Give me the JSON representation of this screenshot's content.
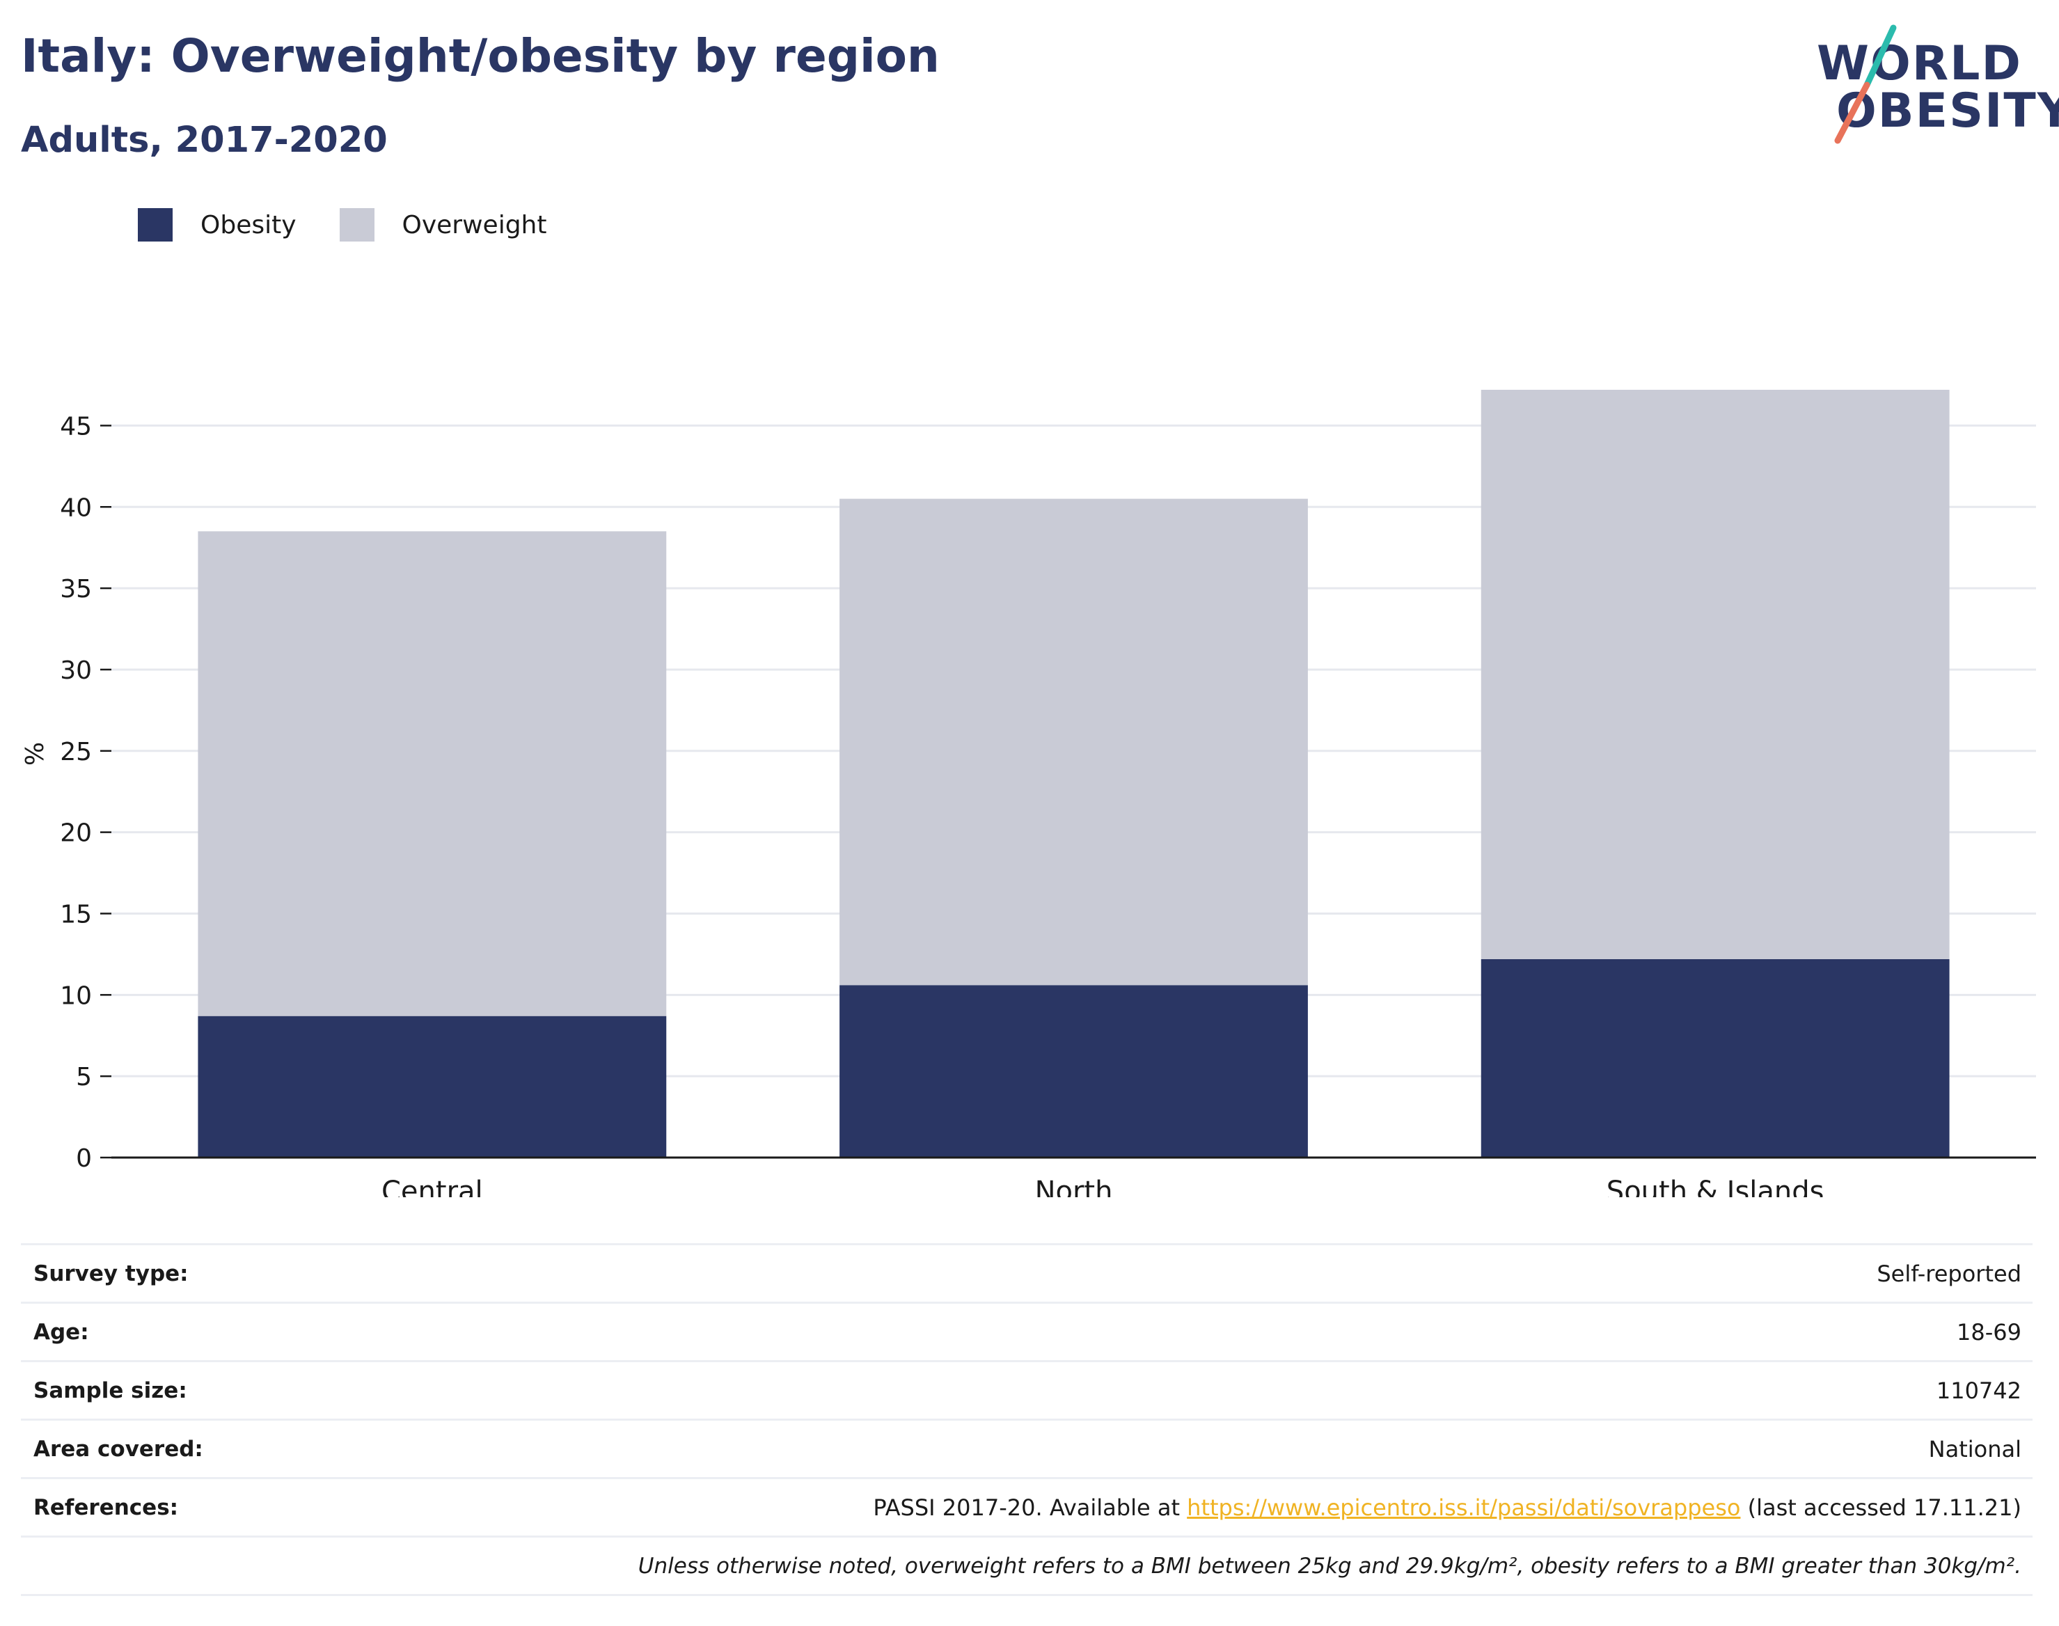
{
  "title": "Italy: Overweight/obesity by region",
  "subtitle": "Adults, 2017-2020",
  "logo": {
    "line1": "WORLD",
    "line2": "OBESITY",
    "accent_colors": [
      "#2bbbad",
      "#e8735a"
    ]
  },
  "colors": {
    "obesity": "#2a3664",
    "overweight": "#c9cbd6",
    "title": "#2a3664",
    "grid": "#e6e8ee",
    "link": "#f0b323"
  },
  "chart_data": {
    "type": "bar",
    "stacked": true,
    "categories": [
      "Central",
      "North",
      "South & Islands"
    ],
    "series": [
      {
        "name": "Obesity",
        "values": [
          8.7,
          10.6,
          12.2
        ]
      },
      {
        "name": "Overweight",
        "values": [
          29.8,
          29.9,
          35.0
        ]
      }
    ],
    "ylabel": "%",
    "xlabel": "",
    "ylim": [
      0,
      47.2
    ],
    "yticks": [
      0,
      5,
      10,
      15,
      20,
      25,
      30,
      35,
      40,
      45
    ],
    "grid": true,
    "legend_position": "top-left"
  },
  "meta": {
    "survey_type_label": "Survey type:",
    "survey_type": "Self-reported",
    "age_label": "Age:",
    "age": "18-69",
    "sample_size_label": "Sample size:",
    "sample_size": "110742",
    "area_label": "Area covered:",
    "area": "National",
    "references_label": "References:",
    "references_prefix": "PASSI 2017-20. Available at",
    "references_link": "https://www.epicentro.iss.it/passi/dati/sovrappeso",
    "references_suffix": "(last accessed 17.11.21)",
    "footnote": "Unless otherwise noted, overweight refers to a BMI between 25kg and 29.9kg/m², obesity refers to a BMI greater than 30kg/m²."
  }
}
